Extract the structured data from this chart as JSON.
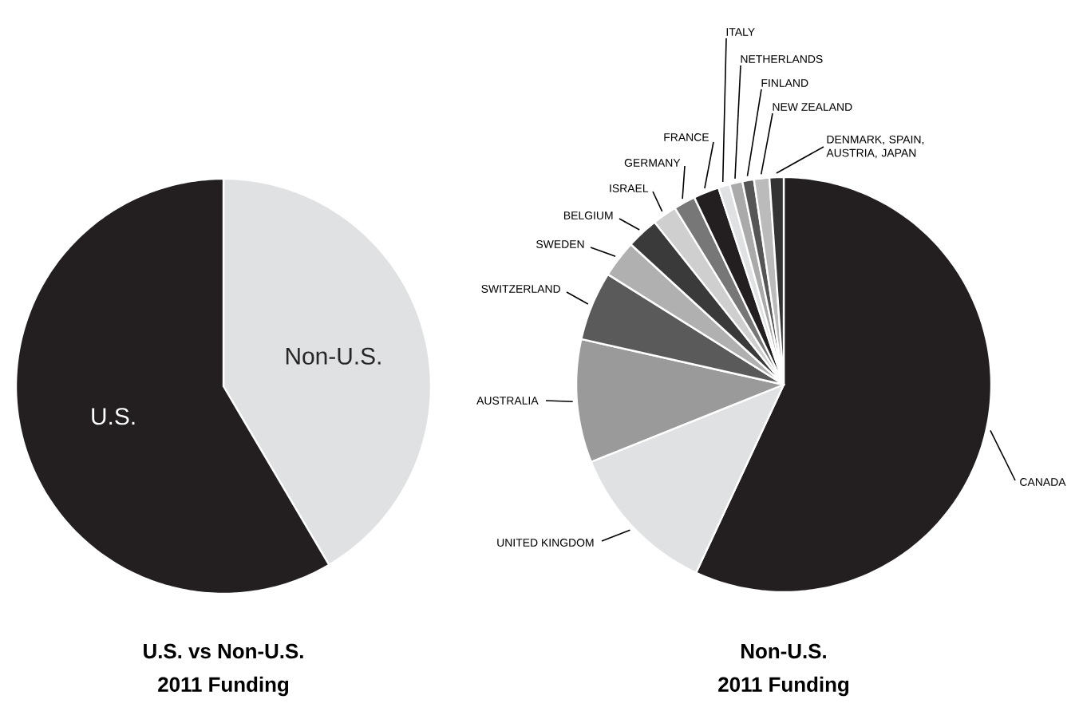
{
  "chart_data": [
    {
      "type": "pie",
      "title": "U.S. vs Non-U.S.",
      "subtitle": "2011 Funding",
      "categories": [
        "Non-U.S.",
        "U.S."
      ],
      "values": [
        41.5,
        58.5
      ],
      "colors": [
        "#e0e1e3",
        "#231f20"
      ]
    },
    {
      "type": "pie",
      "title": "Non-U.S.",
      "subtitle": "2011 Funding",
      "categories": [
        "CANADA",
        "UNITED KINGDOM",
        "AUSTRALIA",
        "SWITZERLAND",
        "SWEDEN",
        "BELGIUM",
        "ISRAEL",
        "GERMANY",
        "FRANCE",
        "ITALY",
        "NETHERLANDS",
        "FINLAND",
        "NEW ZEALAND",
        "DENMARK, SPAIN, AUSTRIA, JAPAN"
      ],
      "values": [
        57,
        12,
        9.6,
        5.4,
        2.9,
        2.5,
        1.9,
        1.7,
        2,
        0.9,
        1,
        0.9,
        1.2,
        1.1
      ],
      "colors": [
        "#231f20",
        "#e0e1e3",
        "#9a9a9a",
        "#5a5a5a",
        "#b0b0b0",
        "#3a3a3a",
        "#cfcfcf",
        "#777777",
        "#231f20",
        "#e0e1e3",
        "#aaaaaa",
        "#555555",
        "#bbbbbb",
        "#333333"
      ]
    }
  ]
}
